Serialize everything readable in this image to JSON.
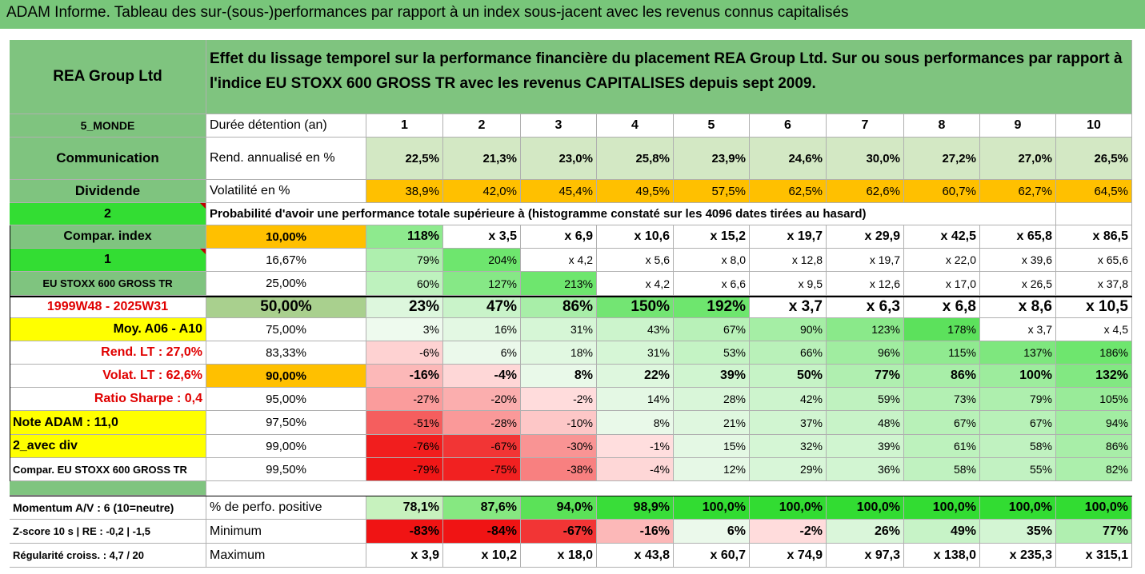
{
  "report_title": "ADAM Informe. Tableau des sur-(sous-)performances par rapport à un index sous-jacent avec les revenus connus capitalisés",
  "company": "REA Group Ltd",
  "header_description": "Effet du lissage temporel sur la performance financière du placement REA Group Ltd. Sur ou sous performances par rapport à l'indice EU STOXX 600 GROSS TR avec les revenus CAPITALISES depuis sept 2009.",
  "left_labels": {
    "region": "5_MONDE",
    "sector": "Communication",
    "dividende": "Dividende",
    "num2": "2",
    "compar_index": "Compar. index",
    "num1": "1",
    "index_name": "EU STOXX 600 GROSS TR",
    "period": "1999W48 - 2025W31",
    "moy": "Moy. A06 - A10",
    "rend_lt": "Rend. LT :   27,0%",
    "volat_lt": "Volat. LT :   62,6%",
    "sharpe": "Ratio Sharpe :    0,4",
    "note": "Note ADAM : 11,0",
    "avec_div": "2_avec div",
    "compar_full": "Compar. EU STOXX 600 GROSS TR",
    "momentum": "Momentum A/V : 6 (10=neutre)",
    "zscore": "Z-score 10 s  | RE : -0,2  | -1,5",
    "regularite": "Régularité croiss. : 4,7 / 20"
  },
  "row_labels": {
    "duree": "Durée détention (an)",
    "rend": "Rend. annualisé en %",
    "volat": "Volatilité en %",
    "proba": "Probabilité d'avoir une performance totale supérieure à (histogramme constaté sur les 4096 dates tirées au hasard)",
    "positive": "% de perfo. positive",
    "minimum": "Minimum",
    "maximum": "Maximum"
  },
  "years": [
    "1",
    "2",
    "3",
    "4",
    "5",
    "6",
    "7",
    "8",
    "9",
    "10"
  ],
  "rend": [
    "22,5%",
    "21,3%",
    "23,0%",
    "25,8%",
    "23,9%",
    "24,6%",
    "30,0%",
    "27,2%",
    "27,0%",
    "26,5%"
  ],
  "volat": [
    "38,9%",
    "42,0%",
    "45,4%",
    "49,5%",
    "57,5%",
    "62,5%",
    "62,6%",
    "60,7%",
    "62,7%",
    "64,5%"
  ],
  "quantiles": [
    {
      "q": "10,00%",
      "values": [
        "118%",
        "x 3,5",
        "x 6,9",
        "x 10,6",
        "x 15,2",
        "x 19,7",
        "x 29,9",
        "x 42,5",
        "x 65,8",
        "x 86,5"
      ]
    },
    {
      "q": "16,67%",
      "values": [
        "79%",
        "204%",
        "x 4,2",
        "x 5,6",
        "x 8,0",
        "x 12,8",
        "x 19,7",
        "x 22,0",
        "x 39,6",
        "x 65,6"
      ]
    },
    {
      "q": "25,00%",
      "values": [
        "60%",
        "127%",
        "213%",
        "x 4,2",
        "x 6,6",
        "x 9,5",
        "x 12,6",
        "x 17,0",
        "x 26,5",
        "x 37,8"
      ]
    },
    {
      "q": "50,00%",
      "values": [
        "23%",
        "47%",
        "86%",
        "150%",
        "192%",
        "x 3,7",
        "x 6,3",
        "x 6,8",
        "x 8,6",
        "x 10,5"
      ]
    },
    {
      "q": "75,00%",
      "values": [
        "3%",
        "16%",
        "31%",
        "43%",
        "67%",
        "90%",
        "123%",
        "178%",
        "x 3,7",
        "x 4,5"
      ]
    },
    {
      "q": "83,33%",
      "values": [
        "-6%",
        "6%",
        "18%",
        "31%",
        "53%",
        "66%",
        "96%",
        "115%",
        "137%",
        "186%"
      ]
    },
    {
      "q": "90,00%",
      "values": [
        "-16%",
        "-4%",
        "8%",
        "22%",
        "39%",
        "50%",
        "77%",
        "86%",
        "100%",
        "132%"
      ]
    },
    {
      "q": "95,00%",
      "values": [
        "-27%",
        "-20%",
        "-2%",
        "14%",
        "28%",
        "42%",
        "59%",
        "73%",
        "79%",
        "105%"
      ]
    },
    {
      "q": "97,50%",
      "values": [
        "-51%",
        "-28%",
        "-10%",
        "8%",
        "21%",
        "37%",
        "48%",
        "67%",
        "67%",
        "94%"
      ]
    },
    {
      "q": "99,00%",
      "values": [
        "-76%",
        "-67%",
        "-30%",
        "-1%",
        "15%",
        "32%",
        "39%",
        "61%",
        "58%",
        "86%"
      ]
    },
    {
      "q": "99,50%",
      "values": [
        "-79%",
        "-75%",
        "-38%",
        "-4%",
        "12%",
        "29%",
        "36%",
        "58%",
        "55%",
        "82%"
      ]
    }
  ],
  "positive": [
    "78,1%",
    "87,6%",
    "94,0%",
    "98,9%",
    "100,0%",
    "100,0%",
    "100,0%",
    "100,0%",
    "100,0%",
    "100,0%"
  ],
  "minimum": [
    "-83%",
    "-84%",
    "-67%",
    "-16%",
    "6%",
    "-2%",
    "26%",
    "49%",
    "35%",
    "77%"
  ],
  "maximum": [
    "x 3,9",
    "x 10,2",
    "x 18,0",
    "x 43,8",
    "x 60,7",
    "x 74,9",
    "x 97,3",
    "x 138,0",
    "x 235,3",
    "x 315,1"
  ],
  "colors": {
    "title_bar": "#78c67a",
    "label_green": "#7fc47f",
    "bright_green": "#33dd33",
    "yellow": "#ffff00",
    "orange": "#ffc000",
    "red_text": "#e00000"
  }
}
